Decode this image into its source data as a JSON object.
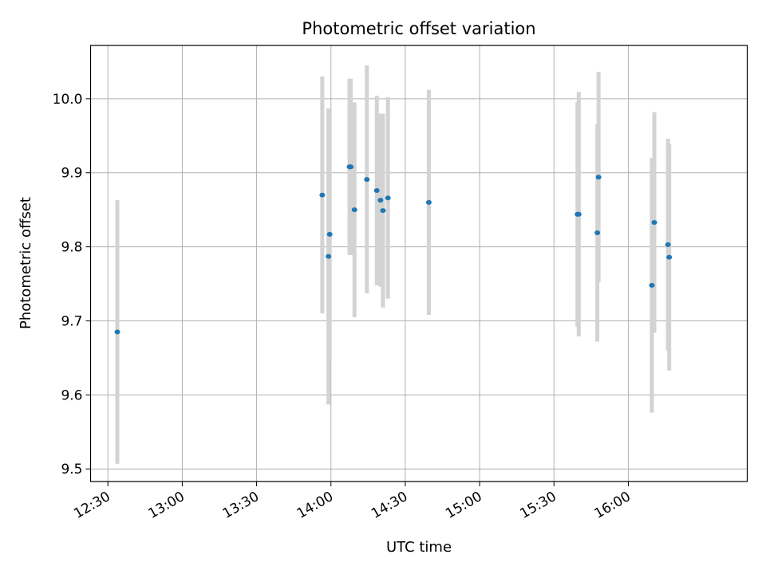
{
  "chart_data": {
    "type": "scatter",
    "title": "Photometric offset variation",
    "xlabel": "UTC time",
    "ylabel": "Photometric offset",
    "grid": true,
    "xlim": [
      "12:23",
      "16:48"
    ],
    "ylim": [
      9.483,
      10.072
    ],
    "x_ticks": [
      "12:30",
      "13:00",
      "13:30",
      "14:00",
      "14:30",
      "15:00",
      "15:30",
      "16:00"
    ],
    "y_ticks": [
      "9.5",
      "9.6",
      "9.7",
      "9.8",
      "9.9",
      "10.0"
    ],
    "y_tick_values": [
      9.5,
      9.6,
      9.7,
      9.8,
      9.9,
      10.0
    ],
    "colors": {
      "point": "#1f77b4",
      "errorbar": "#d3d3d3",
      "grid": "#b0b0b0"
    },
    "series": [
      {
        "name": "offset",
        "points": [
          {
            "t": "12:33.8",
            "y": 9.685,
            "err": 0.178
          },
          {
            "t": "13:56.5",
            "y": 9.87,
            "err": 0.16
          },
          {
            "t": "13:59.0",
            "y": 9.787,
            "err": 0.2
          },
          {
            "t": "13:59.5",
            "y": 9.817,
            "err": 0.17
          },
          {
            "t": "14:07.5",
            "y": 9.908,
            "err": 0.119
          },
          {
            "t": "14:08.0",
            "y": 9.908,
            "err": 0.119
          },
          {
            "t": "14:09.5",
            "y": 9.85,
            "err": 0.145
          },
          {
            "t": "14:14.5",
            "y": 9.891,
            "err": 0.154
          },
          {
            "t": "14:18.5",
            "y": 9.876,
            "err": 0.128
          },
          {
            "t": "14:20.0",
            "y": 9.863,
            "err": 0.117
          },
          {
            "t": "14:21.0",
            "y": 9.849,
            "err": 0.131
          },
          {
            "t": "14:23.0",
            "y": 9.866,
            "err": 0.136
          },
          {
            "t": "14:39.5",
            "y": 9.86,
            "err": 0.152
          },
          {
            "t": "15:39.5",
            "y": 9.844,
            "err": 0.152
          },
          {
            "t": "15:40.0",
            "y": 9.844,
            "err": 0.165
          },
          {
            "t": "15:47.5",
            "y": 9.819,
            "err": 0.147
          },
          {
            "t": "15:48.0",
            "y": 9.894,
            "err": 0.142
          },
          {
            "t": "16:09.5",
            "y": 9.748,
            "err": 0.172
          },
          {
            "t": "16:10.5",
            "y": 9.833,
            "err": 0.149
          },
          {
            "t": "16:16.0",
            "y": 9.803,
            "err": 0.143
          },
          {
            "t": "16:16.5",
            "y": 9.786,
            "err": 0.153
          }
        ]
      }
    ]
  }
}
